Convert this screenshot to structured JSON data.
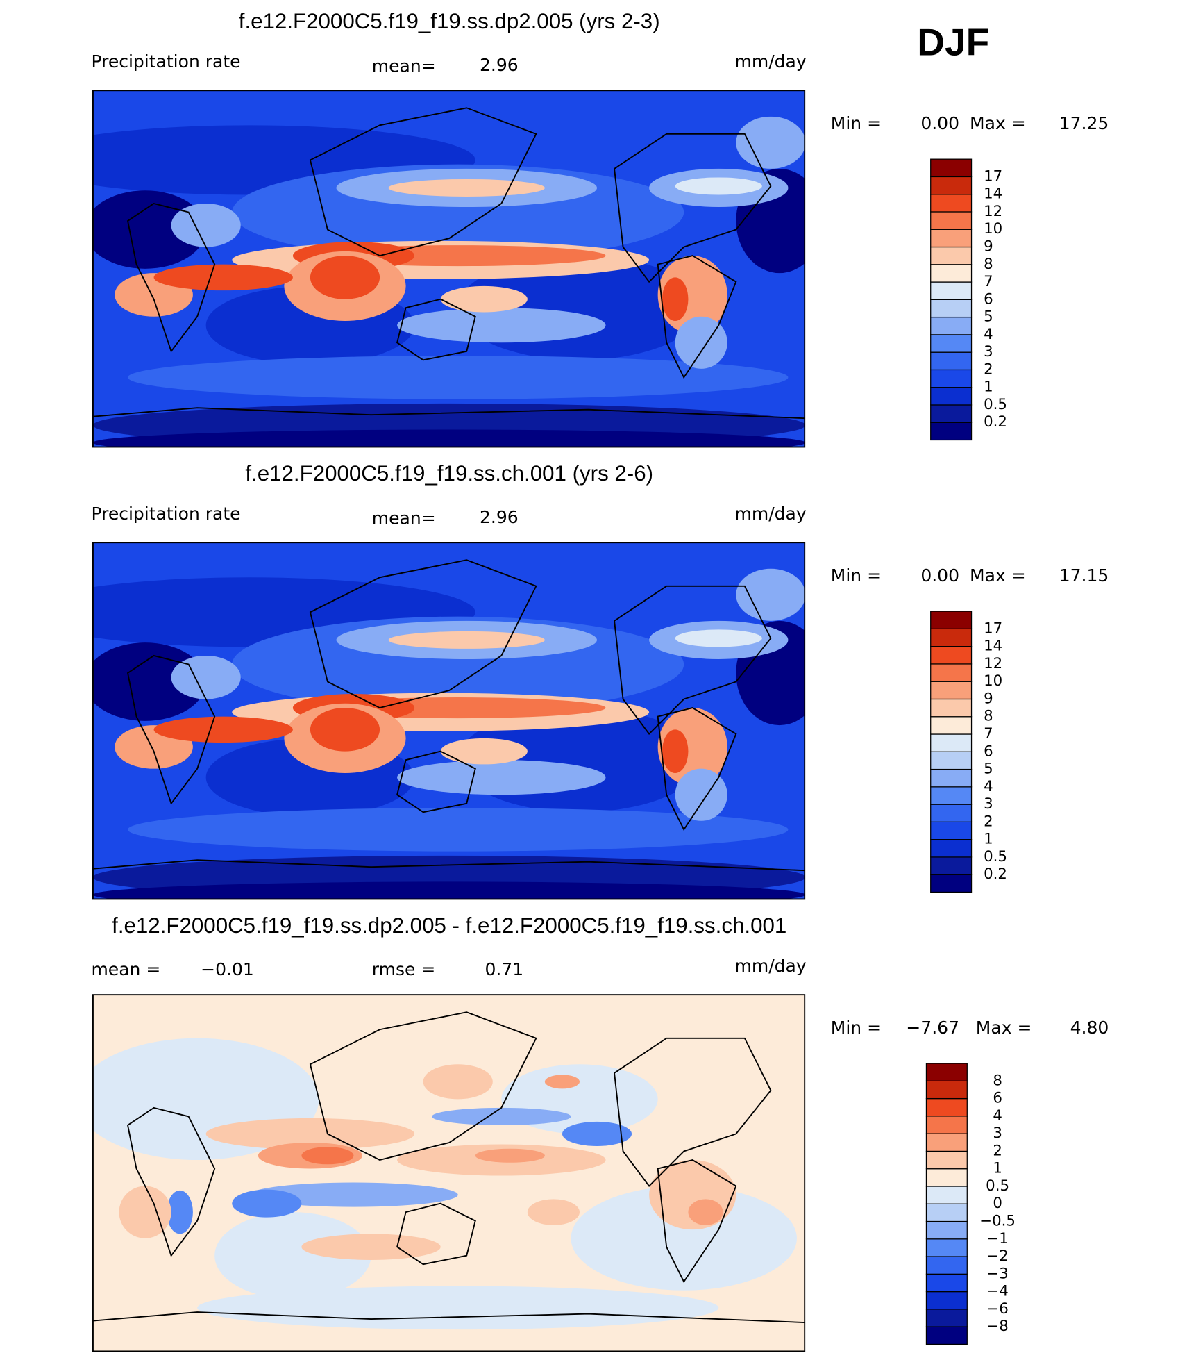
{
  "season": "DJF",
  "panels": [
    {
      "title": "f.e12.F2000C5.f19_f19.ss.dp2.005 (yrs 2-3)",
      "left_label": "Precipitation rate",
      "center_label": "mean=",
      "center_value": "2.96",
      "units": "mm/day",
      "min_label": "Min =",
      "min": "0.00",
      "max_label": "Max =",
      "max": "17.25",
      "colorbar": {
        "levels": [
          "0.2",
          "0.5",
          "1",
          "2",
          "3",
          "4",
          "5",
          "6",
          "7",
          "8",
          "9",
          "10",
          "12",
          "14",
          "17"
        ],
        "colors": [
          "#000080",
          "#0a1a9c",
          "#0b2fd0",
          "#1a48e8",
          "#3366f0",
          "#5588f5",
          "#88acf5",
          "#b7cff5",
          "#dce9f7",
          "#fdebd9",
          "#fbc9ab",
          "#f9a07a",
          "#f5754a",
          "#ee4a20",
          "#c92a0c",
          "#8b0000"
        ]
      }
    },
    {
      "title": "f.e12.F2000C5.f19_f19.ss.ch.001 (yrs 2-6)",
      "left_label": "Precipitation rate",
      "center_label": "mean=",
      "center_value": "2.96",
      "units": "mm/day",
      "min_label": "Min =",
      "min": "0.00",
      "max_label": "Max =",
      "max": "17.15",
      "colorbar": {
        "levels": [
          "0.2",
          "0.5",
          "1",
          "2",
          "3",
          "4",
          "5",
          "6",
          "7",
          "8",
          "9",
          "10",
          "12",
          "14",
          "17"
        ],
        "colors": [
          "#000080",
          "#0a1a9c",
          "#0b2fd0",
          "#1a48e8",
          "#3366f0",
          "#5588f5",
          "#88acf5",
          "#b7cff5",
          "#dce9f7",
          "#fdebd9",
          "#fbc9ab",
          "#f9a07a",
          "#f5754a",
          "#ee4a20",
          "#c92a0c",
          "#8b0000"
        ]
      }
    },
    {
      "title": "f.e12.F2000C5.f19_f19.ss.dp2.005 - f.e12.F2000C5.f19_f19.ss.ch.001",
      "left_label": "mean =",
      "left_value": "−0.01",
      "center_label": "rmse =",
      "center_value": "0.71",
      "units": "mm/day",
      "min_label": "Min =",
      "min": "−7.67",
      "max_label": "Max =",
      "max": "4.80",
      "colorbar": {
        "levels": [
          "−8",
          "−6",
          "−4",
          "−3",
          "−2",
          "−1",
          "−0.5",
          "0",
          "0.5",
          "1",
          "2",
          "3",
          "4",
          "6",
          "8"
        ],
        "colors": [
          "#000080",
          "#0a1a9c",
          "#0b2fd0",
          "#1a48e8",
          "#3366f0",
          "#5588f5",
          "#88acf5",
          "#b7cff5",
          "#dce9f7",
          "#fdebd9",
          "#fbc9ab",
          "#f9a07a",
          "#f5754a",
          "#ee4a20",
          "#c92a0c",
          "#8b0000"
        ]
      }
    }
  ]
}
